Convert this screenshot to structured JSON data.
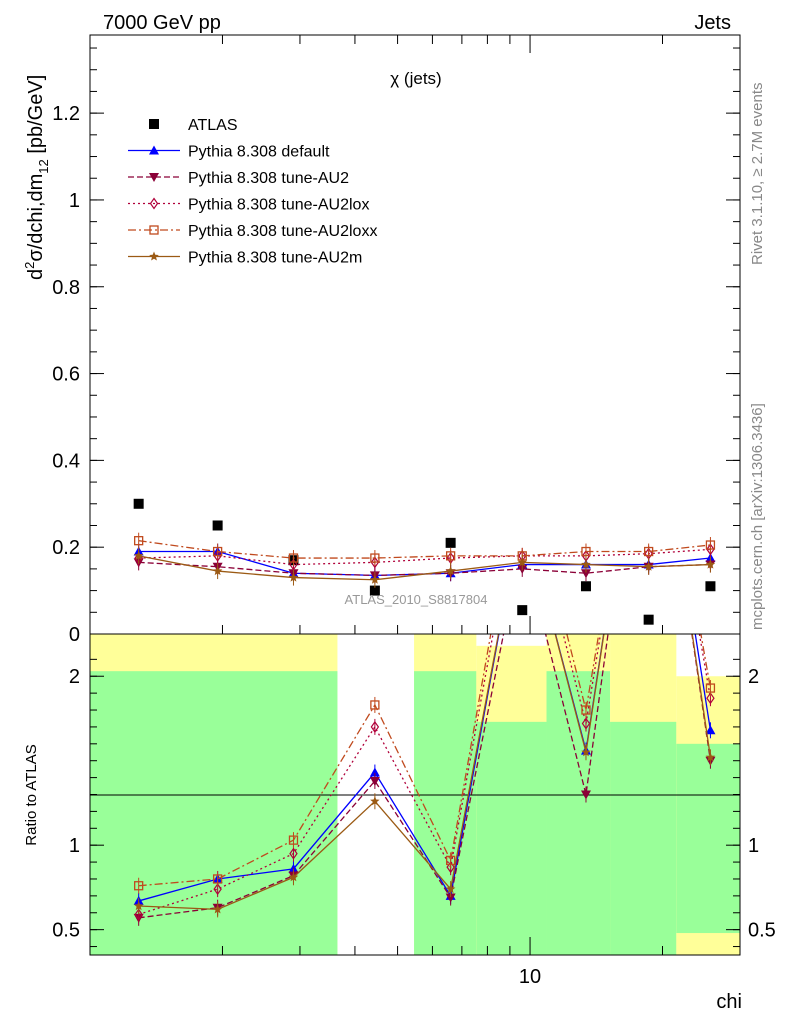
{
  "header": {
    "left": "7000 GeV pp",
    "right": "Jets",
    "side_top": "Rivet 3.1.10, ≥ 2.7M events",
    "side_bottom": "mcplots.cern.ch [arXiv:1306.3436]",
    "watermark": "ATLAS_2010_S8817804"
  },
  "chart_data": [
    {
      "type": "scatter",
      "panel": "main",
      "title": "χ (jets)",
      "ylabel": "d²σ/dchi,dm₁₂ [pb/GeV]",
      "ylabel_parts": {
        "d": "d",
        "sup": "2",
        "sigma": "σ/dchi,dm",
        "sub": "12",
        "unit": " [pb/GeV]"
      },
      "xscale": "log",
      "xlim": [
        1,
        30
      ],
      "ylim": [
        0,
        1.38
      ],
      "yticks": [
        0,
        0.2,
        0.4,
        0.6,
        0.8,
        1,
        1.2
      ],
      "ytick_labels": [
        "0",
        "0.2",
        "0.4",
        "0.6",
        "0.8",
        "1",
        "1.2"
      ],
      "x": [
        1.29,
        1.95,
        2.9,
        4.44,
        6.6,
        9.6,
        13.4,
        18.6,
        25.7
      ],
      "legend_position": "top-left",
      "series": [
        {
          "name": "ATLAS",
          "color": "#000000",
          "marker": "square",
          "dash": "none",
          "values": [
            0.3,
            0.25,
            0.17,
            0.1,
            0.21,
            0.055,
            0.11,
            0.033,
            0.11
          ]
        },
        {
          "name": "Pythia 8.308 default",
          "color": "#0000ff",
          "marker": "triangle-up",
          "dash": "solid",
          "values": [
            0.19,
            0.19,
            0.14,
            0.135,
            0.14,
            0.16,
            0.16,
            0.16,
            0.175
          ]
        },
        {
          "name": "Pythia 8.308 tune-AU2",
          "color": "#8b0037",
          "marker": "triangle-down",
          "dash": "dashed",
          "values": [
            0.165,
            0.155,
            0.14,
            0.135,
            0.14,
            0.15,
            0.14,
            0.155,
            0.16
          ]
        },
        {
          "name": "Pythia 8.308 tune-AU2lox",
          "color": "#b0003a",
          "marker": "diamond",
          "dash": "dotted",
          "values": [
            0.175,
            0.18,
            0.16,
            0.165,
            0.175,
            0.18,
            0.18,
            0.185,
            0.195
          ]
        },
        {
          "name": "Pythia 8.308 tune-AU2loxx",
          "color": "#c04a1e",
          "marker": "open-square",
          "dash": "dashdot",
          "values": [
            0.215,
            0.19,
            0.175,
            0.175,
            0.18,
            0.18,
            0.19,
            0.19,
            0.205
          ]
        },
        {
          "name": "Pythia 8.308 tune-AU2m",
          "color": "#9b5a14",
          "marker": "star",
          "dash": "solid",
          "values": [
            0.18,
            0.145,
            0.13,
            0.125,
            0.145,
            0.165,
            0.16,
            0.155,
            0.16
          ]
        }
      ]
    },
    {
      "type": "line",
      "panel": "ratio",
      "ylabel": "Ratio to ATLAS",
      "xlabel": "chi",
      "xscale": "log",
      "xlim": [
        1,
        30
      ],
      "ylim": [
        0.35,
        2.25
      ],
      "xticks": [
        10
      ],
      "xtick_labels": [
        "10"
      ],
      "yticks": [
        0.5,
        1,
        2
      ],
      "ytick_labels": [
        "0.5",
        "1",
        "2"
      ],
      "x": [
        1.29,
        1.95,
        2.9,
        4.44,
        6.6,
        9.6,
        13.4,
        18.6,
        25.7
      ],
      "uncertainty_bands": [
        {
          "x0": 1.0,
          "x1": 3.65,
          "inner": [
            0.35,
            2.03
          ],
          "outer": [
            0.35,
            2.4
          ]
        },
        {
          "x0": 5.45,
          "x1": 7.55,
          "inner": [
            0.35,
            2.03
          ],
          "outer": [
            0.35,
            2.4
          ]
        },
        {
          "x0": 7.55,
          "x1": 10.9,
          "inner": [
            0.35,
            1.73
          ],
          "outer": [
            0.35,
            2.18
          ]
        },
        {
          "x0": 10.9,
          "x1": 15.2,
          "inner": [
            0.35,
            2.03
          ],
          "outer": [
            0.35,
            2.4
          ]
        },
        {
          "x0": 15.2,
          "x1": 21.5,
          "inner": [
            0.35,
            1.73
          ],
          "outer": [
            0.35,
            2.4
          ]
        },
        {
          "x0": 21.5,
          "x1": 30.0,
          "inner": [
            0.48,
            1.6
          ],
          "outer": [
            0.35,
            2.0
          ]
        }
      ],
      "band_colors": {
        "inner": "#99ff99",
        "outer": "#ffff99"
      },
      "series": [
        {
          "name": "Pythia 8.308 default",
          "color": "#0000ff",
          "marker": "triangle-up",
          "dash": "solid",
          "values": [
            0.67,
            0.8,
            0.86,
            1.43,
            0.7,
            3.0,
            1.56,
            4.0,
            1.68
          ]
        },
        {
          "name": "Pythia 8.308 tune-AU2",
          "color": "#8b0037",
          "marker": "triangle-down",
          "dash": "dashed",
          "values": [
            0.57,
            0.63,
            0.82,
            1.38,
            0.69,
            2.8,
            1.3,
            4.0,
            1.5
          ]
        },
        {
          "name": "Pythia 8.308 tune-AU2lox",
          "color": "#b0003a",
          "marker": "diamond",
          "dash": "dotted",
          "values": [
            0.59,
            0.74,
            0.95,
            1.7,
            0.87,
            3.2,
            1.72,
            4.0,
            1.87
          ]
        },
        {
          "name": "Pythia 8.308 tune-AU2loxx",
          "color": "#c04a1e",
          "marker": "open-square",
          "dash": "dashdot",
          "values": [
            0.76,
            0.8,
            1.03,
            1.83,
            0.91,
            3.3,
            1.8,
            4.0,
            1.93
          ]
        },
        {
          "name": "Pythia 8.308 tune-AU2m",
          "color": "#9b5a14",
          "marker": "star",
          "dash": "solid",
          "values": [
            0.64,
            0.62,
            0.81,
            1.26,
            0.74,
            3.0,
            1.55,
            4.0,
            1.52
          ]
        }
      ]
    }
  ]
}
